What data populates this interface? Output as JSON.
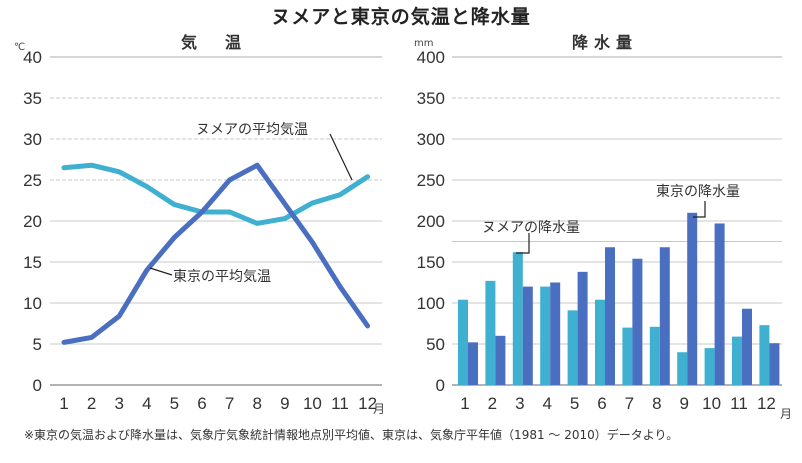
{
  "title": "ヌメアと東京の気温と降水量",
  "footnote": "※東京の気温および降水量は、気象庁気象統計情報地点別平均値、東京は、気象庁平年値（1981 ～ 2010）データより。",
  "colors": {
    "numea": "#3fb0d0",
    "tokyo": "#4a6fc0",
    "grid": "#c8c8c8",
    "leader": "#222222"
  },
  "chart_data": [
    {
      "type": "line",
      "title": "気　温",
      "ylabel": "℃",
      "xlabel": "月",
      "ylim": [
        0,
        40
      ],
      "yticks": [
        0,
        5,
        10,
        15,
        20,
        25,
        30,
        35,
        40
      ],
      "categories": [
        "1",
        "2",
        "3",
        "4",
        "5",
        "6",
        "7",
        "8",
        "9",
        "10",
        "11",
        "12"
      ],
      "grid": true,
      "series": [
        {
          "name": "ヌメアの平均気温",
          "key": "numea",
          "values": [
            26.5,
            26.8,
            26.0,
            24.2,
            22.0,
            21.1,
            21.1,
            19.7,
            20.3,
            22.2,
            23.2,
            25.4
          ]
        },
        {
          "name": "東京の平均気温",
          "key": "tokyo",
          "values": [
            5.2,
            5.8,
            8.4,
            14.0,
            18.0,
            21.1,
            25.0,
            26.8,
            22.1,
            17.4,
            12.0,
            7.2
          ]
        }
      ],
      "annotations": [
        {
          "text": "ヌメアの平均気温",
          "series": "numea"
        },
        {
          "text": "東京の平均気温",
          "series": "tokyo"
        }
      ]
    },
    {
      "type": "bar",
      "title": "降水量",
      "ylabel": "mm",
      "xlabel": "月",
      "ylim": [
        0,
        400
      ],
      "yticks": [
        0,
        50,
        100,
        150,
        200,
        250,
        300,
        350,
        400
      ],
      "categories": [
        "1",
        "2",
        "3",
        "4",
        "5",
        "6",
        "7",
        "8",
        "9",
        "10",
        "11",
        "12"
      ],
      "grid": true,
      "series": [
        {
          "name": "ヌメアの降水量",
          "key": "numea",
          "values": [
            104,
            127,
            162,
            120,
            91,
            104,
            70,
            71,
            40,
            45,
            59,
            73
          ]
        },
        {
          "name": "東京の降水量",
          "key": "tokyo",
          "values": [
            52,
            60,
            120,
            125,
            138,
            168,
            154,
            168,
            210,
            197,
            93,
            51
          ]
        }
      ],
      "annotations": [
        {
          "text": "ヌメアの降水量",
          "series": "numea"
        },
        {
          "text": "東京の降水量",
          "series": "tokyo"
        }
      ]
    }
  ]
}
